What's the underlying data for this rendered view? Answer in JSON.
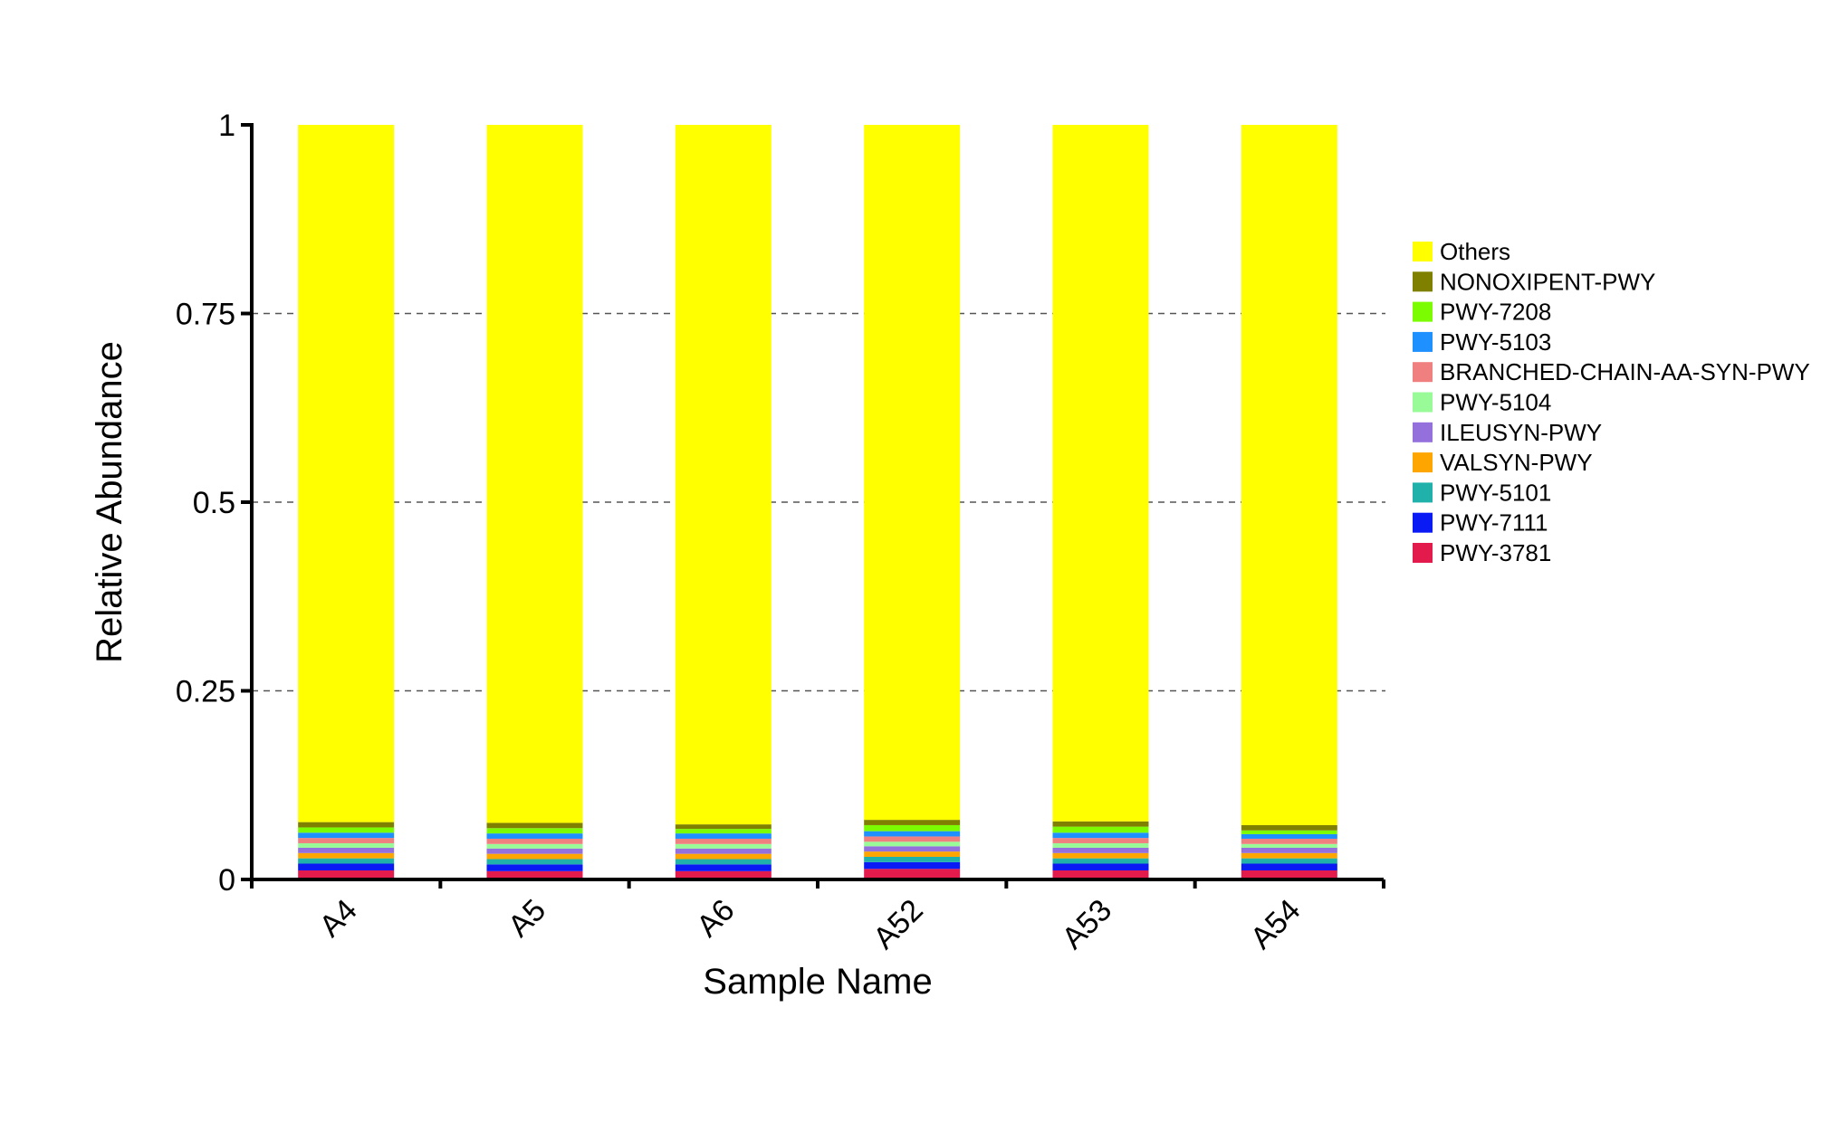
{
  "chart_data": {
    "type": "bar",
    "stacked": true,
    "title": "",
    "xlabel": "Sample Name",
    "ylabel": "Relative Abundance",
    "ylim": [
      0,
      1
    ],
    "y_ticks": [
      {
        "value": 0,
        "label": "0"
      },
      {
        "value": 0.25,
        "label": "0.25"
      },
      {
        "value": 0.5,
        "label": "0.5"
      },
      {
        "value": 0.75,
        "label": "0.75"
      },
      {
        "value": 1,
        "label": "1"
      }
    ],
    "grid": "dashed horizontal at 0.25, 0.5, 0.75",
    "legend_position": "right",
    "categories": [
      "A4",
      "A5",
      "A6",
      "A52",
      "A53",
      "A54"
    ],
    "series": [
      {
        "name": "PWY-3781",
        "color": "#E31A4C",
        "values": [
          0.012,
          0.011,
          0.011,
          0.014,
          0.012,
          0.012
        ]
      },
      {
        "name": "PWY-7111",
        "color": "#0A1AF5",
        "values": [
          0.009,
          0.009,
          0.009,
          0.009,
          0.009,
          0.009
        ]
      },
      {
        "name": "PWY-5101",
        "color": "#20B2AA",
        "values": [
          0.007,
          0.007,
          0.007,
          0.007,
          0.007,
          0.007
        ]
      },
      {
        "name": "VALSYN-PWY",
        "color": "#FFA500",
        "values": [
          0.007,
          0.007,
          0.007,
          0.007,
          0.007,
          0.007
        ]
      },
      {
        "name": "ILEUSYN-PWY",
        "color": "#9370DB",
        "values": [
          0.007,
          0.007,
          0.007,
          0.007,
          0.007,
          0.007
        ]
      },
      {
        "name": "PWY-5104",
        "color": "#98FB98",
        "values": [
          0.006,
          0.006,
          0.006,
          0.006,
          0.006,
          0.005
        ]
      },
      {
        "name": "BRANCHED-CHAIN-AA-SYN-PWY",
        "color": "#F08080",
        "values": [
          0.007,
          0.007,
          0.007,
          0.007,
          0.007,
          0.007
        ]
      },
      {
        "name": "PWY-5103",
        "color": "#1E90FF",
        "values": [
          0.007,
          0.007,
          0.007,
          0.007,
          0.007,
          0.006
        ]
      },
      {
        "name": "PWY-7208",
        "color": "#7CFC00",
        "values": [
          0.007,
          0.007,
          0.006,
          0.008,
          0.008,
          0.005
        ]
      },
      {
        "name": "NONOXIPENT-PWY",
        "color": "#808000",
        "values": [
          0.007,
          0.007,
          0.006,
          0.007,
          0.007,
          0.007
        ]
      },
      {
        "name": "Others",
        "color": "#FFFF00",
        "values": [
          0.924,
          0.925,
          0.927,
          0.921,
          0.923,
          0.928
        ]
      }
    ]
  }
}
